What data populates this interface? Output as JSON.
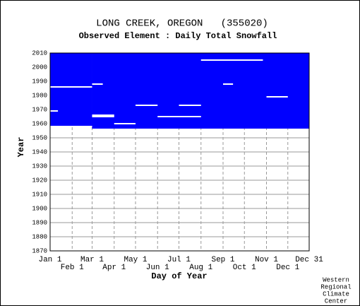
{
  "chart_data": {
    "type": "availability",
    "title": "LONG CREEK, OREGON   (355020)",
    "subtitle": "Observed Element : Daily Total Snowfall",
    "x_label": "Day of Year",
    "y_label": "Year",
    "color": "#0000ff",
    "xlim": [
      1,
      365
    ],
    "ylim": [
      1870,
      2010
    ],
    "yticks": [
      1870,
      1880,
      1890,
      1900,
      1910,
      1920,
      1930,
      1940,
      1950,
      1960,
      1970,
      1980,
      1990,
      2000,
      2010
    ],
    "xticks": [
      {
        "value": 1,
        "label": "Jan 1"
      },
      {
        "value": 32,
        "label": "Feb 1"
      },
      {
        "value": 60,
        "label": "Mar 1"
      },
      {
        "value": 91,
        "label": "Apr 1"
      },
      {
        "value": 121,
        "label": "May 1"
      },
      {
        "value": 152,
        "label": "Jun 1"
      },
      {
        "value": 182,
        "label": "Jul 1"
      },
      {
        "value": 213,
        "label": "Aug 1"
      },
      {
        "value": 244,
        "label": "Sep 1"
      },
      {
        "value": 274,
        "label": "Oct 1"
      },
      {
        "value": 305,
        "label": "Nov 1"
      },
      {
        "value": 335,
        "label": "Dec 1"
      },
      {
        "value": 365,
        "label": "Dec 31"
      }
    ],
    "coverage": [
      {
        "year_from": 1958.5,
        "year_to": 2010,
        "day_from": 1,
        "day_to": 60
      },
      {
        "year_from": 1956.5,
        "year_to": 2010,
        "day_from": 60,
        "day_to": 365
      }
    ],
    "gaps": [
      {
        "year": 1986,
        "day_from": 1,
        "day_to": 60
      },
      {
        "year": 1988,
        "day_from": 60,
        "day_to": 75
      },
      {
        "year": 1966,
        "day_from": 60,
        "day_to": 91
      },
      {
        "year": 1965,
        "day_from": 60,
        "day_to": 91
      },
      {
        "year": 1973,
        "day_from": 121,
        "day_to": 152
      },
      {
        "year": 1973,
        "day_from": 182,
        "day_to": 213
      },
      {
        "year": 1965,
        "day_from": 152,
        "day_to": 213
      },
      {
        "year": 1988,
        "day_from": 244,
        "day_to": 258
      },
      {
        "year": 2005,
        "day_from": 213,
        "day_to": 300
      },
      {
        "year": 1979,
        "day_from": 305,
        "day_to": 335
      },
      {
        "year": 1969,
        "day_from": 1,
        "day_to": 12
      },
      {
        "year": 1960,
        "day_from": 91,
        "day_to": 121
      }
    ],
    "credit": [
      "Western",
      "Regional",
      "Climate",
      "Center"
    ]
  }
}
